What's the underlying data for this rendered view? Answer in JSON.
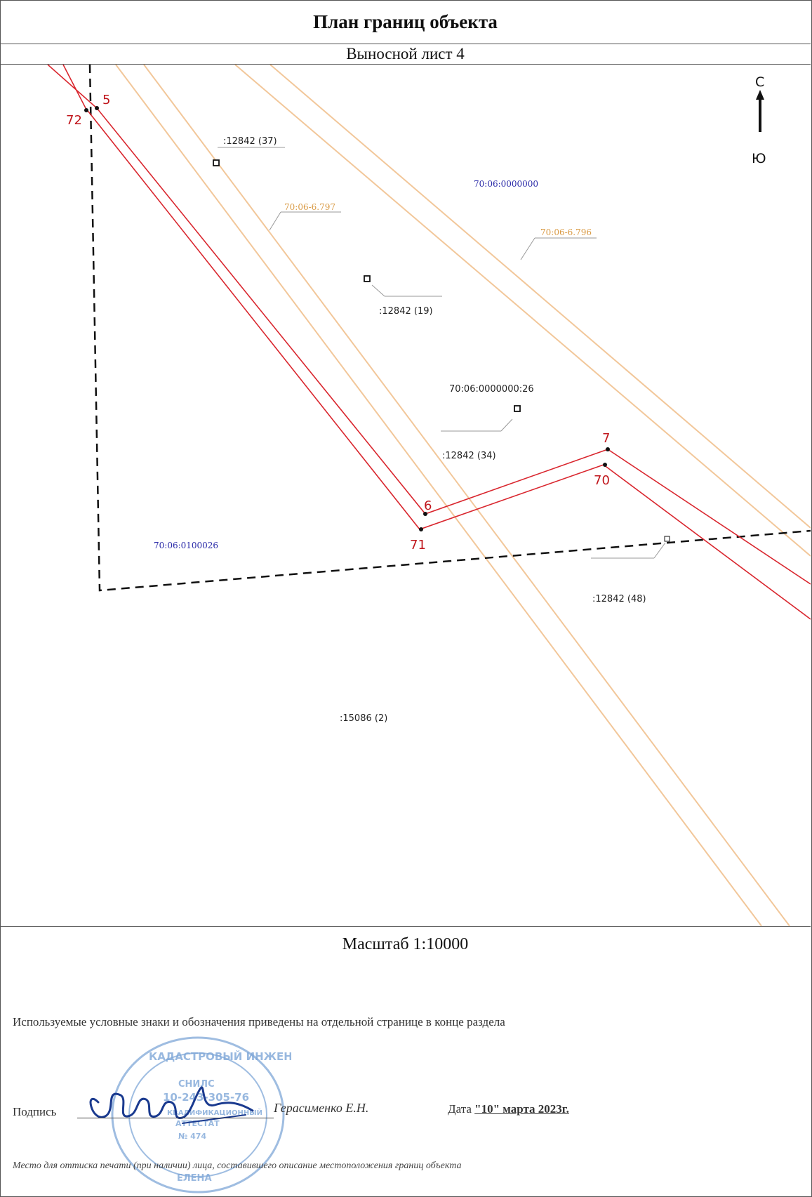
{
  "header": {
    "title": "План границ объекта",
    "subtitle": "Выносной лист 4"
  },
  "map": {
    "compass": {
      "north": "С",
      "south": "Ю"
    },
    "points": [
      {
        "label": "5"
      },
      {
        "label": "72"
      },
      {
        "label": "6"
      },
      {
        "label": "71"
      },
      {
        "label": "7"
      },
      {
        "label": "70"
      }
    ],
    "parcels": [
      {
        "label": ":12842 (37)"
      },
      {
        "label": ":12842 (19)"
      },
      {
        "label": ":12842 (34)"
      },
      {
        "label": ":12842 (48)"
      },
      {
        "label": ":15086 (2)"
      },
      {
        "label": "70:06:0000000:26"
      }
    ],
    "quarters": [
      {
        "label": "70:06:0000000"
      },
      {
        "label": "70:06:0100026"
      }
    ],
    "zones": [
      {
        "label": "70:06-6.797"
      },
      {
        "label": "70:06-6.796"
      }
    ],
    "colors": {
      "boundary": "#d9262e",
      "zone": "#f2c79a",
      "quarter": "#2a2aa8",
      "zone_label": "#d99a44",
      "point_label": "#c0161c"
    }
  },
  "footer": {
    "scale": "Масштаб 1:10000",
    "legend_note": "Используемые условные знаки и обозначения приведены на отдельной странице в конце раздела",
    "signature_label": "Подпись",
    "signer": "Герасименко Е.Н.",
    "date_label": "Дата",
    "date_value": "\"10\" марта 2023г.",
    "place_note": "Место для оттиска печати (при наличии) лица, составившего описание местоположения границ объекта",
    "stamp_text": [
      "КАДАСТРОВЫЙ ИНЖЕНЕР",
      "СНИЛС",
      "10-243-305-76",
      "КВАЛИФИКАЦИОННЫЙ",
      "АТТЕСТАТ",
      "№ 474",
      "ЕЛЕНА"
    ]
  }
}
